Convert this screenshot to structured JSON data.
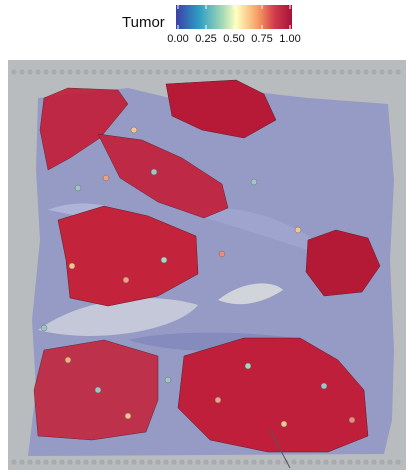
{
  "legend": {
    "title": "Tumor",
    "ticks": [
      "0.00",
      "0.25",
      "0.50",
      "0.75",
      "1.00"
    ],
    "colormap_stops": [
      "#3b4cc0",
      "#2fa4c4",
      "#7fcdbb",
      "#ffffbf",
      "#fdae61",
      "#e04d4d",
      "#a50f3a"
    ]
  },
  "image": {
    "description": "spatial transcriptomics spots over H&E tissue section",
    "background_color": "#b9bcbf",
    "tissue_color": "#8f95c4",
    "spot_colors": {
      "high": "#c0203a",
      "very_high": "#a50f3a",
      "mid": "#f0a080",
      "low": "#9fc6c0"
    }
  }
}
